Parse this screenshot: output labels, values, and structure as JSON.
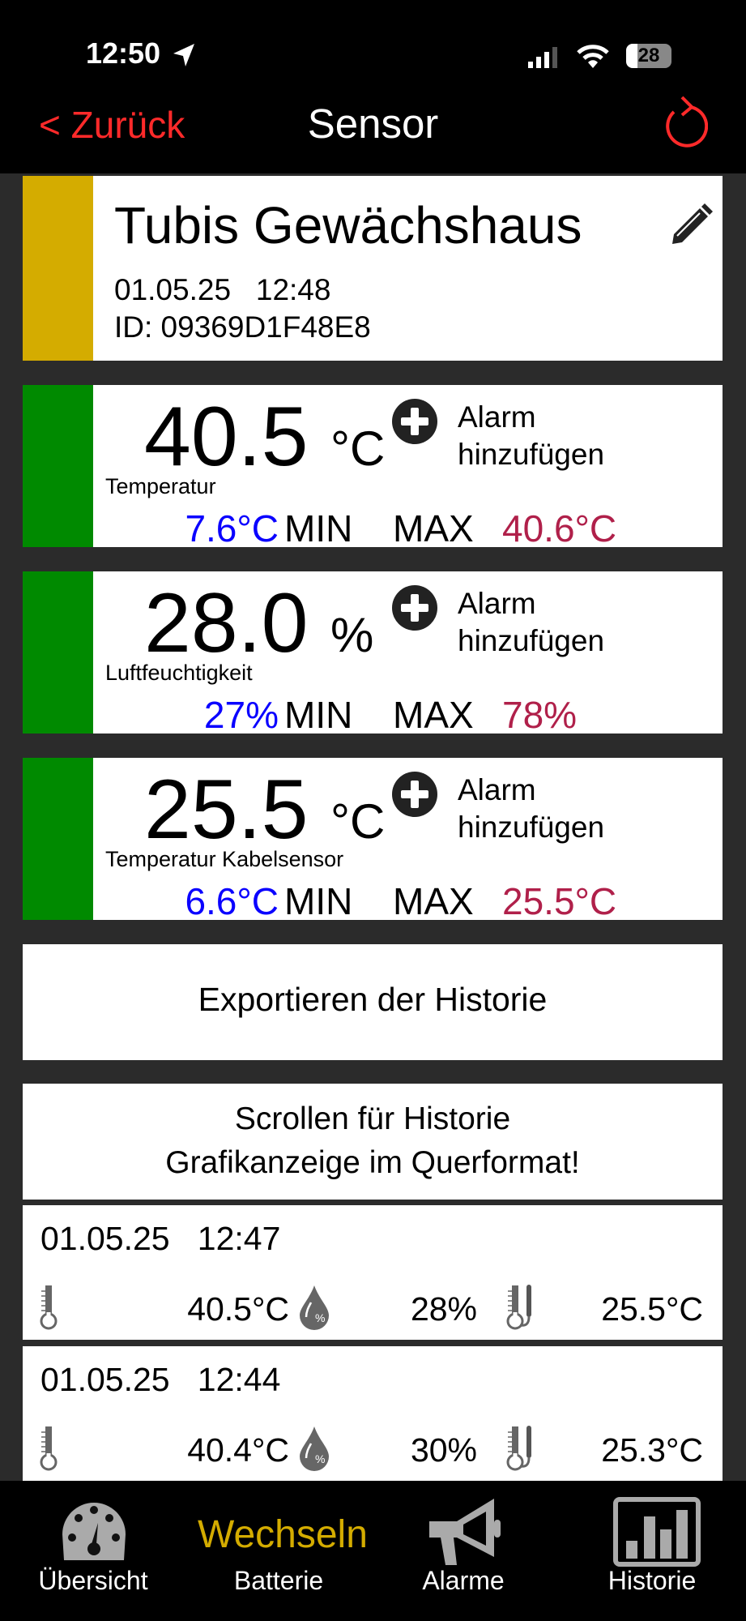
{
  "status_bar": {
    "time": "12:50",
    "battery": "28"
  },
  "nav": {
    "back_label": "< Zurück",
    "title": "Sensor"
  },
  "colors": {
    "accent_red": "#ff2a2a",
    "status_yellow": "#d4ac00",
    "status_green": "#008a00",
    "min_blue": "#0a00ff",
    "max_red": "#b0204a"
  },
  "header": {
    "name": "Tubis Gewächshaus",
    "date": "01.05.25",
    "time": "12:48",
    "id": "ID: 09369D1F48E8"
  },
  "sensors": [
    {
      "value": "40.5",
      "unit": "°C",
      "label": "Temperatur",
      "alarm_line1": "Alarm",
      "alarm_line2": "hinzufügen",
      "min": "7.6°C",
      "min_label": "MIN",
      "max_label": "MAX",
      "max": "40.6°C"
    },
    {
      "value": "28.0",
      "unit": "%",
      "label": "Luftfeuchtigkeit",
      "alarm_line1": "Alarm",
      "alarm_line2": "hinzufügen",
      "min": "27%",
      "min_label": "MIN",
      "max_label": "MAX",
      "max": "78%"
    },
    {
      "value": "25.5",
      "unit": "°C",
      "label": "Temperatur Kabelsensor",
      "alarm_line1": "Alarm",
      "alarm_line2": "hinzufügen",
      "min": "6.6°C",
      "min_label": "MIN",
      "max_label": "MAX",
      "max": "25.5°C"
    }
  ],
  "export_label": "Exportieren der Historie",
  "history_note": {
    "line1": "Scrollen für Historie",
    "line2": "Grafikanzeige im Querformat!"
  },
  "history": [
    {
      "date": "01.05.25",
      "time": "12:47",
      "temp": "40.5°C",
      "humidity": "28%",
      "cable_temp": "25.5°C"
    },
    {
      "date": "01.05.25",
      "time": "12:44",
      "temp": "40.4°C",
      "humidity": "30%",
      "cable_temp": "25.3°C"
    }
  ],
  "tabs": [
    {
      "label": "Übersicht",
      "icon": "gauge-icon"
    },
    {
      "top": "Wechseln",
      "label": "Batterie"
    },
    {
      "label": "Alarme",
      "icon": "megaphone-icon"
    },
    {
      "label": "Historie",
      "icon": "bar-chart-icon"
    }
  ]
}
